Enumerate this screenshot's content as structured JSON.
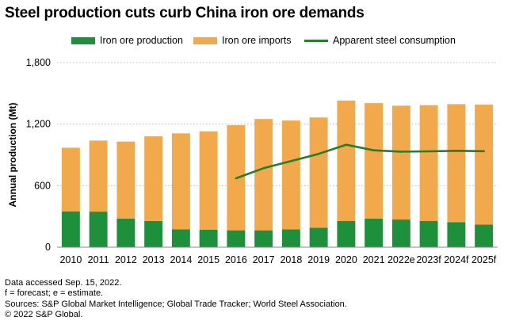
{
  "chart_data": {
    "type": "bar",
    "title": "Steel production cuts curb China iron ore demands",
    "xlabel": "",
    "ylabel": "Annual production (Mt)",
    "ylim": [
      0,
      1800
    ],
    "yticks": [
      "0",
      "600",
      "1,200",
      "1,800"
    ],
    "categories": [
      "2010",
      "2011",
      "2012",
      "2013",
      "2014",
      "2015",
      "2016",
      "2017",
      "2018",
      "2019",
      "2020",
      "2021",
      "2022e",
      "2023f",
      "2024f",
      "2025f"
    ],
    "series": [
      {
        "name": "Iron ore production",
        "kind": "stacked-bar",
        "color": "#1e8f3a",
        "values": [
          350,
          347,
          280,
          256,
          175,
          170,
          165,
          165,
          175,
          190,
          255,
          280,
          270,
          255,
          245,
          220
        ]
      },
      {
        "name": "Iron ore imports",
        "kind": "stacked-bar",
        "color": "#f2a94b",
        "values": [
          620,
          693,
          750,
          825,
          935,
          960,
          1025,
          1085,
          1060,
          1075,
          1175,
          1125,
          1110,
          1130,
          1150,
          1170
        ]
      },
      {
        "name": "Apparent steel consumption",
        "kind": "line",
        "color": "#267d2b",
        "values": [
          null,
          null,
          null,
          null,
          null,
          null,
          672,
          770,
          840,
          910,
          1000,
          945,
          932,
          935,
          940,
          936
        ]
      }
    ]
  },
  "footnotes": [
    "Data accessed Sep. 15, 2022.",
    "f = forecast;  e = estimate.",
    "Sources: S&P Global Market Intelligence; Global Trade Tracker; World Steel Association.",
    "© 2022 S&P Global."
  ]
}
